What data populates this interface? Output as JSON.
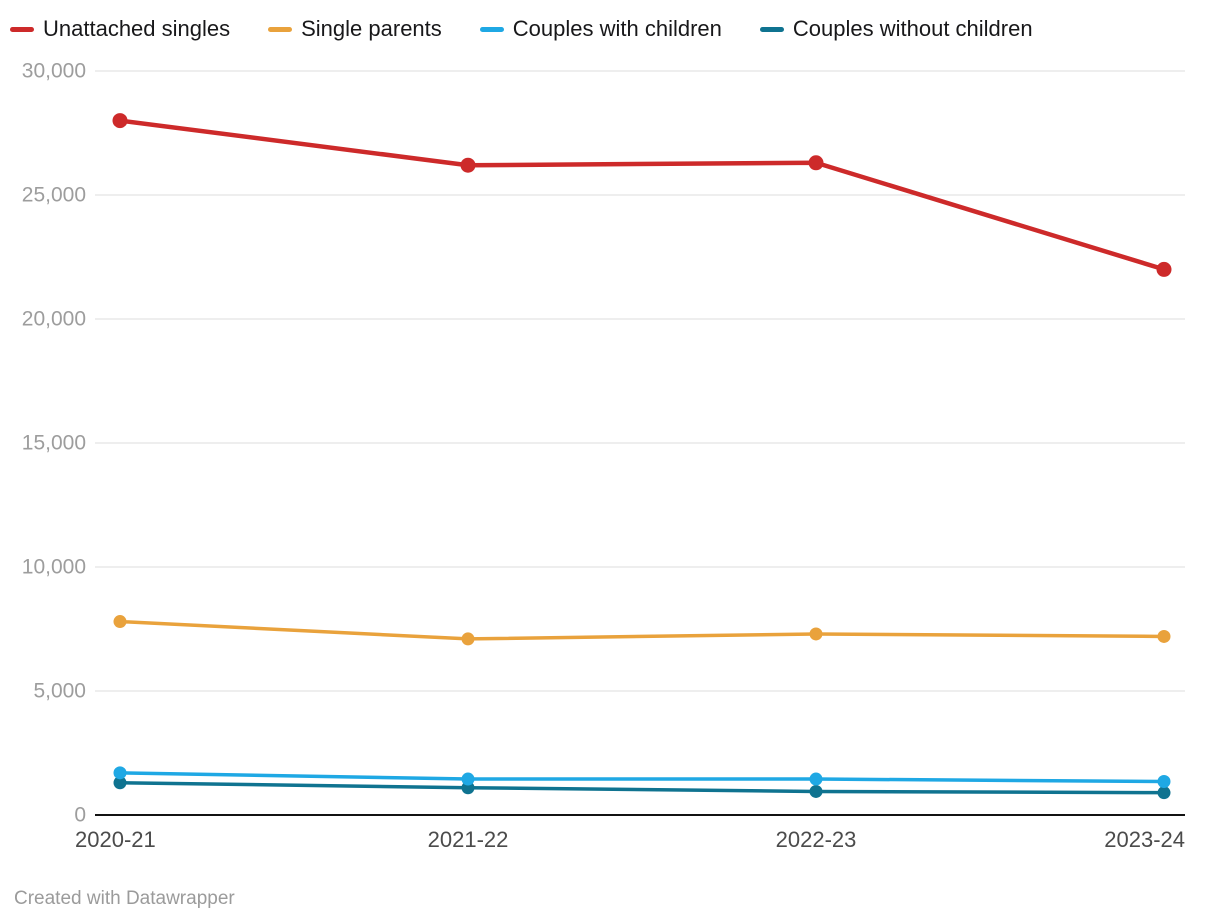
{
  "footer": {
    "credit": "Created with Datawrapper"
  },
  "chart_data": {
    "type": "line",
    "title": "",
    "xlabel": "",
    "ylabel": "",
    "x": [
      "2020-21",
      "2021-22",
      "2022-23",
      "2023-24"
    ],
    "series": [
      {
        "name": "Unattached singles",
        "color": "#cd2a2a",
        "values": [
          28000,
          26200,
          26300,
          22000
        ]
      },
      {
        "name": "Single parents",
        "color": "#e9a23c",
        "values": [
          7800,
          7100,
          7300,
          7200
        ]
      },
      {
        "name": "Couples with children",
        "color": "#1fa8e4",
        "values": [
          1700,
          1450,
          1450,
          1350
        ]
      },
      {
        "name": "Couples without children",
        "color": "#0f7390",
        "values": [
          1300,
          1100,
          950,
          900
        ]
      }
    ],
    "ylim": [
      0,
      30000
    ],
    "yticks": [
      0,
      5000,
      10000,
      15000,
      20000,
      25000,
      30000
    ],
    "grid": true,
    "legend_position": "top",
    "gridline_color": "#dcdcdc",
    "axis_line_color": "#131313"
  }
}
